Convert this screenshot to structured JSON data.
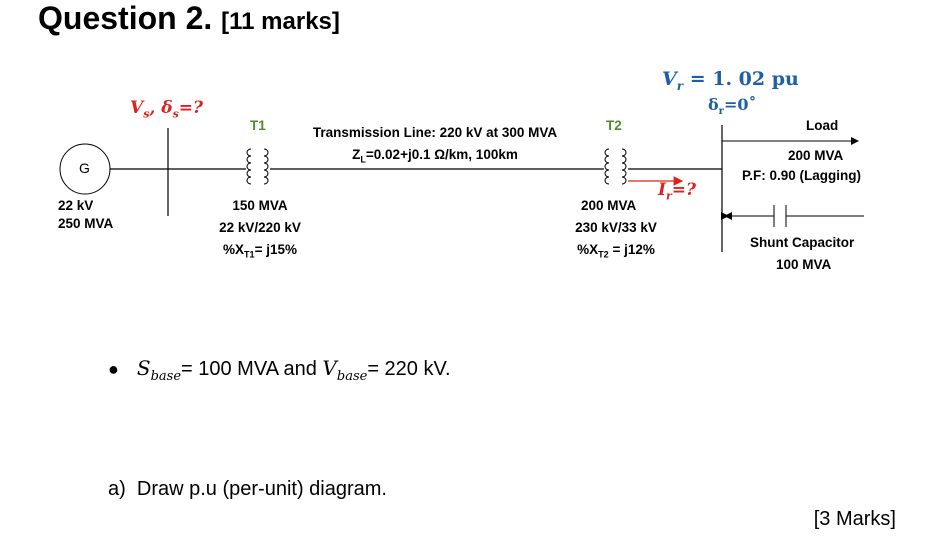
{
  "title": "Question 2.",
  "title_marks": "[11 marks]",
  "diagram": {
    "generator": {
      "symbol": "G",
      "voltage": "22 kV",
      "rating": "250 MVA"
    },
    "sending": {
      "label_main": "V",
      "label_sub": "s",
      "label_sep": ", δ",
      "label_sub2": "s",
      "label_end": "=?"
    },
    "t1": {
      "name": "T1",
      "rating": "150 MVA",
      "voltage": "22 kV/220 kV",
      "reactance": "%X",
      "reactance_sub": "T1",
      "reactance_val": "= j15%"
    },
    "line": {
      "title": "Transmission Line: 220 kV at 300 MVA",
      "impedance": "Z",
      "impedance_sub": "L",
      "impedance_val": "=0.02+j0.1 Ω/km, 100km"
    },
    "t2": {
      "name": "T2",
      "rating": "200 MVA",
      "voltage": "230 kV/33 kV",
      "reactance": "%X",
      "reactance_sub": "T2",
      "reactance_val": " = j12%"
    },
    "current": {
      "label": "I",
      "sub": "r",
      "end": "=?"
    },
    "receiving": {
      "v_main": "V",
      "v_sub": "r",
      "v_val": " = 1. 02 pu",
      "delta": "δ",
      "delta_sub": "r",
      "delta_val": "=0˚"
    },
    "load": {
      "label": "Load",
      "rating": "200 MVA",
      "pf": "P.F: 0.90 (Lagging)"
    },
    "capacitor": {
      "label": "Shunt Capacitor",
      "rating": "100 MVA"
    }
  },
  "bullet": {
    "s": "S",
    "s_sub": "base",
    "s_val": "= 100 MVA and ",
    "v": "V",
    "v_sub": "base",
    "v_val": "= 220 kV."
  },
  "part_a": "a)  Draw p.u (per-unit) diagram.",
  "part_a_marks": "[3 Marks]",
  "colors": {
    "red": "#e0201b",
    "blue": "#1f5fa8",
    "green": "#4f8a2f"
  }
}
